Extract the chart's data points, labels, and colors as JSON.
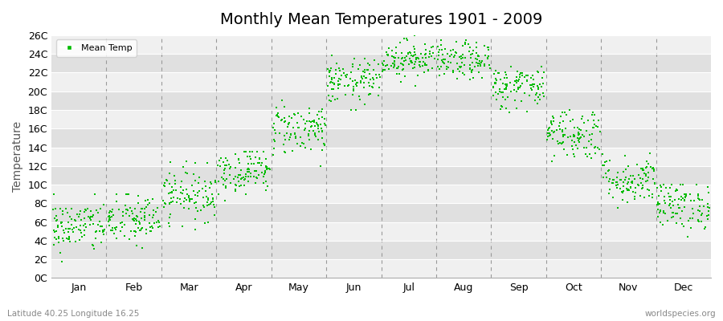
{
  "title": "Monthly Mean Temperatures 1901 - 2009",
  "ylabel": "Temperature",
  "xlabel_labels": [
    "Jan",
    "Feb",
    "Mar",
    "Apr",
    "May",
    "Jun",
    "Jul",
    "Aug",
    "Sep",
    "Oct",
    "Nov",
    "Dec"
  ],
  "ytick_labels": [
    "0C",
    "2C",
    "4C",
    "6C",
    "8C",
    "10C",
    "12C",
    "14C",
    "16C",
    "18C",
    "20C",
    "22C",
    "24C",
    "26C"
  ],
  "ytick_values": [
    0,
    2,
    4,
    6,
    8,
    10,
    12,
    14,
    16,
    18,
    20,
    22,
    24,
    26
  ],
  "ylim": [
    0,
    26
  ],
  "dot_color": "#00bb00",
  "fig_bg_color": "#ffffff",
  "plot_bg_color": "#ebebeb",
  "band_color_light": "#f0f0f0",
  "band_color_dark": "#e0e0e0",
  "legend_label": "Mean Temp",
  "subtitle": "Latitude 40.25 Longitude 16.25",
  "watermark": "worldspecies.org",
  "title_fontsize": 14,
  "label_fontsize": 9,
  "n_years": 109,
  "monthly_means": [
    5.5,
    6.2,
    9.0,
    11.5,
    16.0,
    21.0,
    23.5,
    23.2,
    20.5,
    15.5,
    10.5,
    7.8
  ],
  "monthly_stds": [
    1.4,
    1.4,
    1.4,
    1.2,
    1.4,
    1.2,
    1.0,
    1.0,
    1.2,
    1.4,
    1.3,
    1.3
  ],
  "monthly_min": [
    1.0,
    2.0,
    4.0,
    8.0,
    12.0,
    18.0,
    20.0,
    19.5,
    17.5,
    12.0,
    7.5,
    4.0
  ],
  "monthly_max": [
    9.0,
    9.0,
    12.5,
    13.5,
    19.0,
    24.5,
    26.0,
    25.5,
    23.0,
    19.0,
    14.5,
    10.0
  ]
}
